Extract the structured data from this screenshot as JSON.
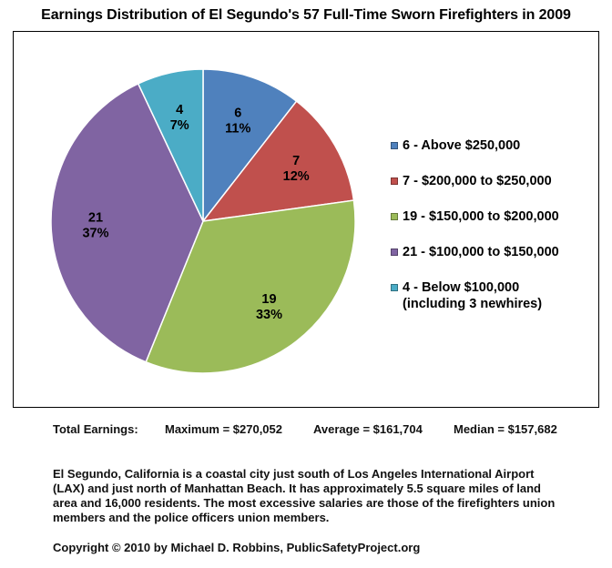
{
  "chart_data": {
    "type": "pie",
    "title": "Earnings Distribution of El Segundo's 57 Full-Time Sworn Firefighters in 2009",
    "total": 57,
    "slices": [
      {
        "count": 6,
        "percent_label": "11%",
        "legend_label": "6 - Above $250,000",
        "legend_sub": "",
        "color": "#4f81bd"
      },
      {
        "count": 7,
        "percent_label": "12%",
        "legend_label": "7 - $200,000 to $250,000",
        "legend_sub": "",
        "color": "#c0504d"
      },
      {
        "count": 19,
        "percent_label": "33%",
        "legend_label": "19 - $150,000 to $200,000",
        "legend_sub": "",
        "color": "#9bbb59"
      },
      {
        "count": 21,
        "percent_label": "37%",
        "legend_label": "21 - $100,000 to $150,000",
        "legend_sub": "",
        "color": "#8064a2"
      },
      {
        "count": 4,
        "percent_label": "7%",
        "legend_label": "4 - Below $100,000",
        "legend_sub": "(including 3 newhires)",
        "color": "#4bacc6"
      }
    ],
    "legend_position": "right"
  },
  "stats": {
    "label": "Total Earnings:",
    "maximum": "Maximum = $270,052",
    "average": "Average = $161,704",
    "median": "Median = $157,682"
  },
  "description": "El Segundo, California is a coastal city just south of Los Angeles International Airport (LAX) and just north of Manhattan Beach. It has approximately 5.5 square miles of land area and 16,000 residents. The most excessive salaries are those of the firefighters union members and the police officers union members.",
  "copyright": "Copyright  © 2010 by Michael D. Robbins, PublicSafetyProject.org"
}
